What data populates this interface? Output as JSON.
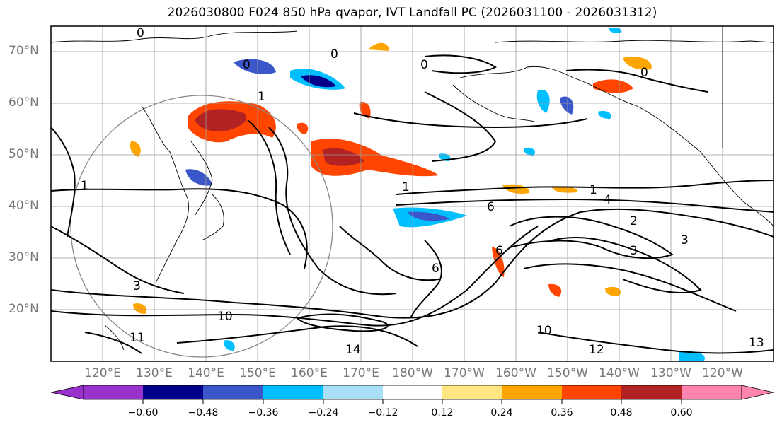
{
  "title": "2026030800 F024 850 hPa qvapor, IVT Landfall PC (2026031100 - 2026031312)",
  "lat_labels": [
    "70°N",
    "60°N",
    "50°N",
    "40°N",
    "30°N",
    "20°N"
  ],
  "lon_labels": [
    "120°E",
    "130°E",
    "140°E",
    "150°E",
    "160°E",
    "170°E",
    "180°W",
    "170°W",
    "160°W",
    "150°W",
    "140°W",
    "130°W",
    "120°W"
  ],
  "colorbar": {
    "ticks": [
      "−0.60",
      "−0.48",
      "−0.36",
      "−0.24",
      "−0.12",
      "0.12",
      "0.24",
      "0.36",
      "0.48",
      "0.60"
    ],
    "colors": [
      "#9932cc",
      "#00008b",
      "#3a56c8",
      "#00bfff",
      "#aadff8",
      "#ffffff",
      "#ffe680",
      "#ffa500",
      "#ff4500",
      "#b22222",
      "#ff85b0"
    ]
  },
  "contour_labels": [
    "0",
    "0",
    "0",
    "0",
    "0",
    "1",
    "1",
    "1",
    "1",
    "2",
    "3",
    "3",
    "3",
    "4",
    "6",
    "6",
    "6",
    "10",
    "10",
    "11",
    "12",
    "13",
    "14"
  ]
}
